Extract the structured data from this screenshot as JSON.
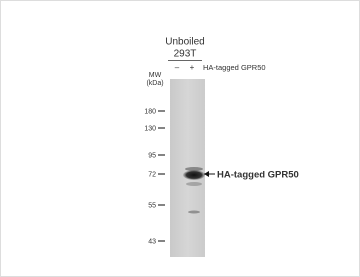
{
  "header": {
    "condition": "Unboiled",
    "cell_line": "293T"
  },
  "lanes": {
    "minus": "–",
    "plus": "+",
    "label": "HA-tagged GPR50"
  },
  "marker_title": {
    "line1": "MW",
    "line2": "(kDa)"
  },
  "markers": [
    "180",
    "130",
    "95",
    "72",
    "55",
    "43"
  ],
  "annotation": "HA-tagged GPR50"
}
